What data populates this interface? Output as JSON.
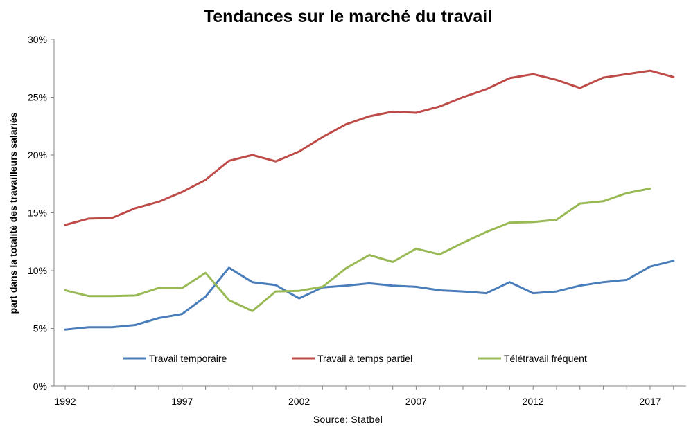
{
  "chart_data": {
    "type": "line",
    "title": "Tendances sur le marché du travail",
    "xlabel": "",
    "ylabel": "part dans la totalité des travailleurs salariés",
    "source": "Source: Statbel",
    "x": [
      1992,
      1993,
      1994,
      1995,
      1996,
      1997,
      1998,
      1999,
      2000,
      2001,
      2002,
      2003,
      2004,
      2005,
      2006,
      2007,
      2008,
      2009,
      2010,
      2011,
      2012,
      2013,
      2014,
      2015,
      2016,
      2017,
      2018
    ],
    "x_ticks": [
      {
        "value": 1992,
        "label": "1992"
      },
      {
        "value": 1997,
        "label": "1997"
      },
      {
        "value": 2002,
        "label": "2002"
      },
      {
        "value": 2007,
        "label": "2007"
      },
      {
        "value": 2012,
        "label": "2012"
      },
      {
        "value": 2017,
        "label": "2017"
      }
    ],
    "y_ticks": [
      {
        "value": 0,
        "label": "0%"
      },
      {
        "value": 5,
        "label": "5%"
      },
      {
        "value": 10,
        "label": "10%"
      },
      {
        "value": 15,
        "label": "15%"
      },
      {
        "value": 20,
        "label": "20%"
      },
      {
        "value": 25,
        "label": "25%"
      },
      {
        "value": 30,
        "label": "30%"
      }
    ],
    "ylim": [
      0,
      30
    ],
    "xlim": [
      1992,
      2018.5
    ],
    "grid": false,
    "legend_position": "bottom-inside",
    "series": [
      {
        "name": "Travail temporaire",
        "color": "#4a7ebb",
        "values": [
          4.9,
          5.1,
          5.1,
          5.3,
          5.9,
          6.25,
          7.75,
          10.25,
          9.0,
          8.75,
          7.6,
          8.55,
          8.7,
          8.9,
          8.7,
          8.6,
          8.3,
          8.2,
          8.05,
          9.0,
          8.05,
          8.2,
          8.7,
          9.0,
          9.2,
          10.35,
          10.85
        ]
      },
      {
        "name": "Travail à temps partiel",
        "color": "#be4b48",
        "values": [
          13.95,
          14.5,
          14.55,
          15.4,
          15.95,
          16.8,
          17.85,
          19.5,
          20.0,
          19.45,
          20.3,
          21.55,
          22.65,
          23.35,
          23.75,
          23.65,
          24.2,
          25.0,
          25.7,
          26.65,
          27.0,
          26.5,
          25.8,
          26.7,
          27.0,
          27.3,
          26.75
        ]
      },
      {
        "name": "Télétravail fréquent",
        "color": "#98b954",
        "values": [
          8.3,
          7.8,
          7.8,
          7.85,
          8.5,
          8.5,
          9.8,
          7.45,
          6.5,
          8.2,
          8.25,
          8.6,
          10.2,
          11.35,
          10.75,
          11.9,
          11.4,
          12.4,
          13.35,
          14.15,
          14.2,
          14.4,
          15.8,
          16.0,
          16.7,
          17.1,
          null
        ]
      }
    ]
  }
}
